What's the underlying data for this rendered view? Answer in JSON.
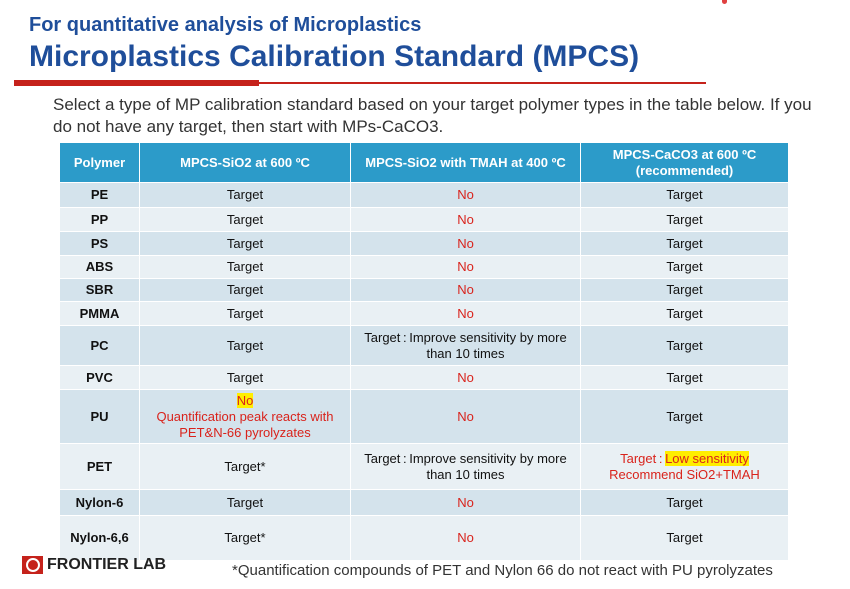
{
  "header": {
    "subtitle": "For quantitative analysis of Microplastics",
    "title": "Microplastics Calibration Standard (MPCS)"
  },
  "intro": "Select a type of MP calibration standard based on your target polymer types in the table below. If you do not have any target, then start with MPs-CaCO3.",
  "table": {
    "headers": [
      "Polymer",
      "MPCS-SiO2 at 600 ºC",
      "MPCS-SiO2 with TMAH at 400 ºC",
      "MPCS-CaCO3 at 600 ºC (recommended)"
    ],
    "rows": [
      {
        "polymer": "PE",
        "c1": "Target",
        "c2": "No",
        "c3": "Target"
      },
      {
        "polymer": "PP",
        "c1": "Target",
        "c2": "No",
        "c3": "Target"
      },
      {
        "polymer": "PS",
        "c1": "Target",
        "c2": "No",
        "c3": "Target"
      },
      {
        "polymer": "ABS",
        "c1": "Target",
        "c2": "No",
        "c3": "Target"
      },
      {
        "polymer": "SBR",
        "c1": "Target",
        "c2": "No",
        "c3": "Target"
      },
      {
        "polymer": "PMMA",
        "c1": "Target",
        "c2": "No",
        "c3": "Target"
      },
      {
        "polymer": "PC",
        "c1": "Target",
        "c2": "Target : Improve sensitivity by more than 10 times",
        "c3": "Target"
      },
      {
        "polymer": "PVC",
        "c1": "Target",
        "c2": "No",
        "c3": "Target"
      },
      {
        "polymer": "PU",
        "c1_no": "No",
        "c1_note": "Quantification peak reacts with PET&N-66 pyrolyzates",
        "c2": "No",
        "c3": "Target"
      },
      {
        "polymer": "PET",
        "c1": "Target*",
        "c2": "Target : Improve sensitivity by more than 10 times",
        "c3_a": "Target : ",
        "c3_b": "Low sensitivity",
        "c3_c": "Recommend SiO2+TMAH"
      },
      {
        "polymer": "Nylon-6",
        "c1": "Target",
        "c2": "No",
        "c3": "Target"
      },
      {
        "polymer": "Nylon-6,6",
        "c1": "Target*",
        "c2": "No",
        "c3": "Target"
      }
    ]
  },
  "footer": {
    "logo": "FRONTIER LAB",
    "note": "*Quantification compounds of PET and Nylon 66 do not react with PU pyrolyzates"
  },
  "colors": {
    "title": "#1f4e9a",
    "accent": "#c5221b",
    "header": "#2c9bc9",
    "no": "#d9231c",
    "highlight": "#ffee00"
  }
}
